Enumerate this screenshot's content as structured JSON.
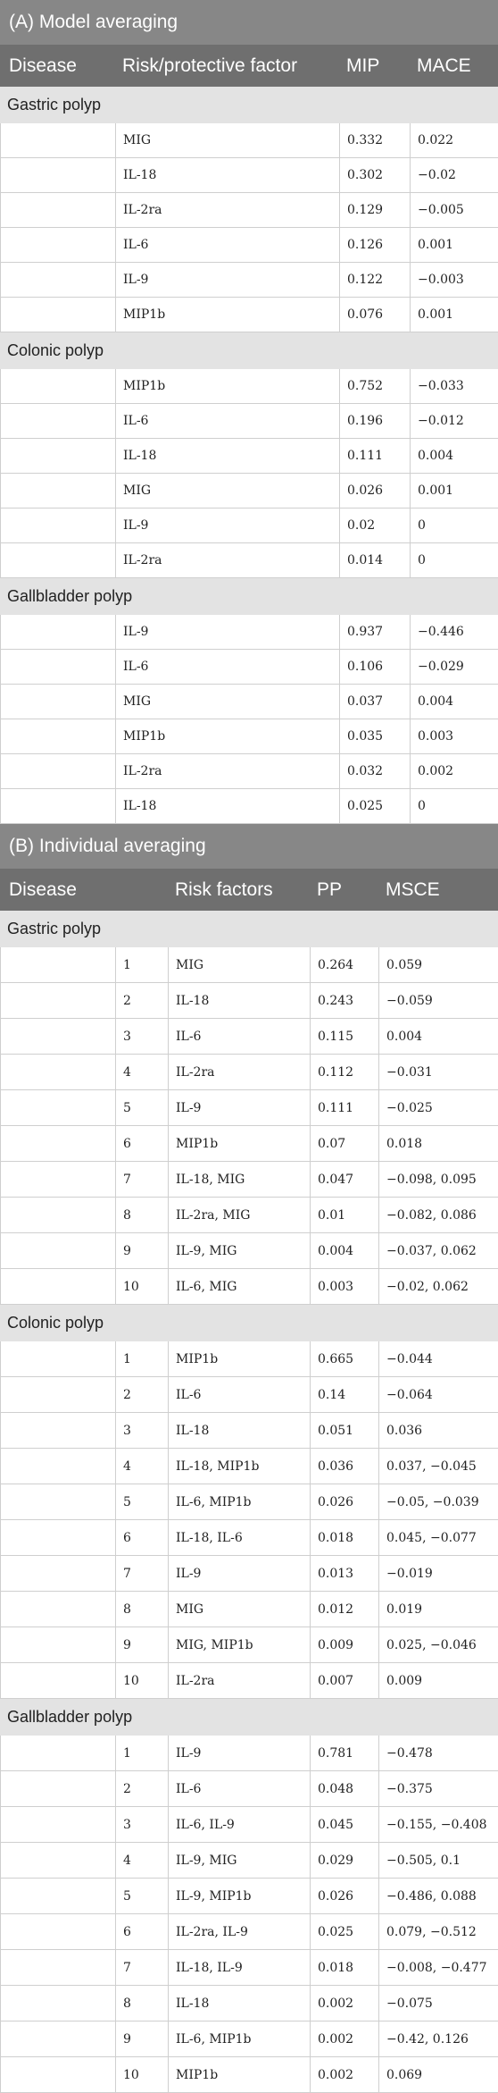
{
  "section_a": {
    "title": "(A) Model averaging",
    "headers": [
      "Disease",
      "Risk/protective factor",
      "MIP",
      "MACE"
    ],
    "groups": [
      {
        "name": "Gastric polyp",
        "rows": [
          [
            "MIG",
            "0.332",
            "0.022"
          ],
          [
            "IL-18",
            "0.302",
            "−0.02"
          ],
          [
            "IL-2ra",
            "0.129",
            "−0.005"
          ],
          [
            "IL-6",
            "0.126",
            "0.001"
          ],
          [
            "IL-9",
            "0.122",
            "−0.003"
          ],
          [
            "MIP1b",
            "0.076",
            "0.001"
          ]
        ]
      },
      {
        "name": "Colonic polyp",
        "rows": [
          [
            "MIP1b",
            "0.752",
            "−0.033"
          ],
          [
            "IL-6",
            "0.196",
            "−0.012"
          ],
          [
            "IL-18",
            "0.111",
            "0.004"
          ],
          [
            "MIG",
            "0.026",
            "0.001"
          ],
          [
            "IL-9",
            "0.02",
            "0"
          ],
          [
            "IL-2ra",
            "0.014",
            "0"
          ]
        ]
      },
      {
        "name": "Gallbladder polyp",
        "rows": [
          [
            "IL-9",
            "0.937",
            "−0.446"
          ],
          [
            "IL-6",
            "0.106",
            "−0.029"
          ],
          [
            "MIG",
            "0.037",
            "0.004"
          ],
          [
            "MIP1b",
            "0.035",
            "0.003"
          ],
          [
            "IL-2ra",
            "0.032",
            "0.002"
          ],
          [
            "IL-18",
            "0.025",
            "0"
          ]
        ]
      }
    ]
  },
  "section_b": {
    "title": "(B) Individual averaging",
    "headers": [
      "Disease",
      "",
      "Risk factors",
      "PP",
      "MSCE"
    ],
    "groups": [
      {
        "name": "Gastric polyp",
        "rows": [
          [
            "1",
            "MIG",
            "0.264",
            "0.059"
          ],
          [
            "2",
            "IL-18",
            "0.243",
            "−0.059"
          ],
          [
            "3",
            "IL-6",
            "0.115",
            "0.004"
          ],
          [
            "4",
            "IL-2ra",
            "0.112",
            "−0.031"
          ],
          [
            "5",
            "IL-9",
            "0.111",
            "−0.025"
          ],
          [
            "6",
            "MIP1b",
            "0.07",
            "0.018"
          ],
          [
            "7",
            "IL-18, MIG",
            "0.047",
            "−0.098, 0.095"
          ],
          [
            "8",
            "IL-2ra, MIG",
            "0.01",
            "−0.082, 0.086"
          ],
          [
            "9",
            "IL-9, MIG",
            "0.004",
            "−0.037, 0.062"
          ],
          [
            "10",
            "IL-6, MIG",
            "0.003",
            "−0.02, 0.062"
          ]
        ]
      },
      {
        "name": "Colonic polyp",
        "rows": [
          [
            "1",
            "MIP1b",
            "0.665",
            "−0.044"
          ],
          [
            "2",
            "IL-6",
            "0.14",
            "−0.064"
          ],
          [
            "3",
            "IL-18",
            "0.051",
            "0.036"
          ],
          [
            "4",
            "IL-18, MIP1b",
            "0.036",
            "0.037, −0.045"
          ],
          [
            "5",
            "IL-6, MIP1b",
            "0.026",
            "−0.05, −0.039"
          ],
          [
            "6",
            "IL-18, IL-6",
            "0.018",
            "0.045, −0.077"
          ],
          [
            "7",
            "IL-9",
            "0.013",
            "−0.019"
          ],
          [
            "8",
            "MIG",
            "0.012",
            "0.019"
          ],
          [
            "9",
            "MIG, MIP1b",
            "0.009",
            "0.025, −0.046"
          ],
          [
            "10",
            "IL-2ra",
            "0.007",
            "0.009"
          ]
        ]
      },
      {
        "name": "Gallbladder polyp",
        "rows": [
          [
            "1",
            "IL-9",
            "0.781",
            "−0.478"
          ],
          [
            "2",
            "IL-6",
            "0.048",
            "−0.375"
          ],
          [
            "3",
            "IL-6, IL-9",
            "0.045",
            "−0.155, −0.408"
          ],
          [
            "4",
            "IL-9, MIG",
            "0.029",
            "−0.505, 0.1"
          ],
          [
            "5",
            "IL-9, MIP1b",
            "0.026",
            "−0.486, 0.088"
          ],
          [
            "6",
            "IL-2ra, IL-9",
            "0.025",
            "0.079, −0.512"
          ],
          [
            "7",
            "IL-18, IL-9",
            "0.018",
            "−0.008, −0.477"
          ],
          [
            "8",
            "IL-18",
            "0.002",
            "−0.075"
          ],
          [
            "9",
            "IL-6, MIP1b",
            "0.002",
            "−0.42, 0.126"
          ],
          [
            "10",
            "MIP1b",
            "0.002",
            "0.069"
          ]
        ]
      }
    ]
  }
}
